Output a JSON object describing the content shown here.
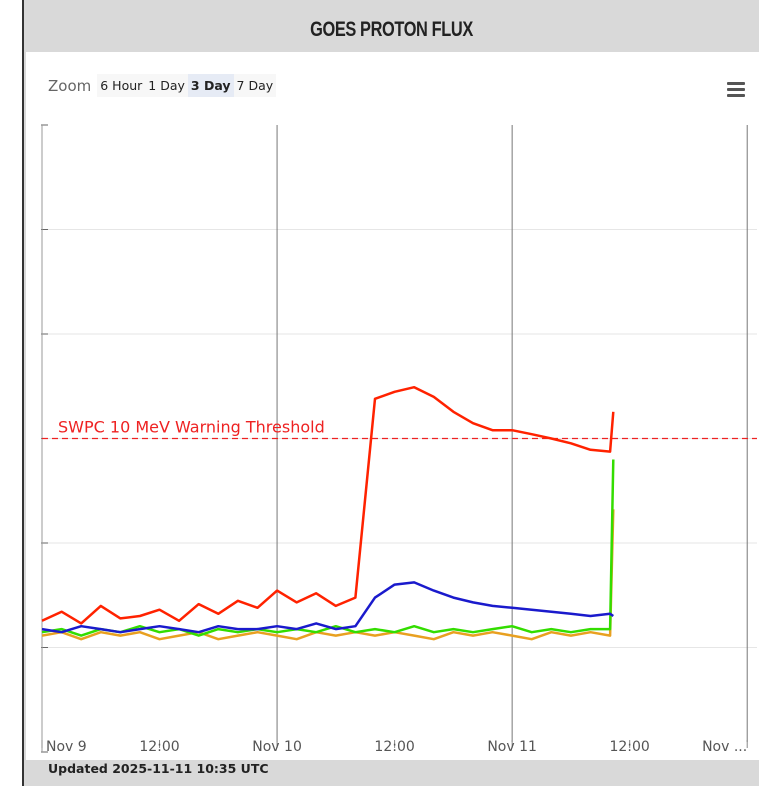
{
  "header": {
    "title": "GOES PROTON FLUX"
  },
  "zoom": {
    "label": "Zoom",
    "buttons": [
      "6 Hour",
      "1 Day",
      "3 Day",
      "7 Day"
    ],
    "selected": 2
  },
  "footer": "Updated 2025-11-11 10:35 UTC",
  "chart_data": {
    "type": "line",
    "log_scale": true,
    "grid": true,
    "x": [
      "2025-11-09T00:00",
      "2025-11-09T02:00",
      "2025-11-09T04:00",
      "2025-11-09T06:00",
      "2025-11-09T08:00",
      "2025-11-09T10:00",
      "2025-11-09T12:00",
      "2025-11-09T14:00",
      "2025-11-09T16:00",
      "2025-11-09T18:00",
      "2025-11-09T20:00",
      "2025-11-09T22:00",
      "2025-11-10T00:00",
      "2025-11-10T02:00",
      "2025-11-10T04:00",
      "2025-11-10T06:00",
      "2025-11-10T08:00",
      "2025-11-10T10:00",
      "2025-11-10T12:00",
      "2025-11-10T14:00",
      "2025-11-10T16:00",
      "2025-11-10T18:00",
      "2025-11-10T20:00",
      "2025-11-10T22:00",
      "2025-11-11T00:00",
      "2025-11-11T02:00",
      "2025-11-11T04:00",
      "2025-11-11T06:00",
      "2025-11-11T08:00",
      "2025-11-11T10:00",
      "2025-11-11T10:20"
    ],
    "series": [
      {
        "color": "#ff2200",
        "values": [
          0.18,
          0.22,
          0.17,
          0.25,
          0.19,
          0.2,
          0.23,
          0.18,
          0.26,
          0.21,
          0.28,
          0.24,
          0.35,
          0.27,
          0.33,
          0.25,
          0.3,
          24,
          28,
          31,
          25,
          18,
          14,
          12,
          12,
          11,
          10,
          9,
          7.8,
          7.5,
          18
        ]
      },
      {
        "color": "#1a1acc",
        "values": [
          0.15,
          0.14,
          0.16,
          0.15,
          0.14,
          0.15,
          0.16,
          0.15,
          0.14,
          0.16,
          0.15,
          0.15,
          0.16,
          0.15,
          0.17,
          0.15,
          0.16,
          0.3,
          0.4,
          0.42,
          0.35,
          0.3,
          0.27,
          0.25,
          0.24,
          0.23,
          0.22,
          0.21,
          0.2,
          0.21,
          0.2
        ]
      },
      {
        "color": "#33dd00",
        "values": [
          0.14,
          0.15,
          0.13,
          0.15,
          0.14,
          0.16,
          0.14,
          0.15,
          0.13,
          0.15,
          0.14,
          0.15,
          0.14,
          0.15,
          0.14,
          0.16,
          0.14,
          0.15,
          0.14,
          0.16,
          0.14,
          0.15,
          0.14,
          0.15,
          0.16,
          0.14,
          0.15,
          0.14,
          0.15,
          0.15,
          6.3
        ]
      },
      {
        "color": "#e8a020",
        "values": [
          0.13,
          0.14,
          0.12,
          0.14,
          0.13,
          0.14,
          0.12,
          0.13,
          0.14,
          0.12,
          0.13,
          0.14,
          0.13,
          0.12,
          0.14,
          0.13,
          0.14,
          0.13,
          0.14,
          0.13,
          0.12,
          0.14,
          0.13,
          0.14,
          0.13,
          0.12,
          0.14,
          0.13,
          0.14,
          0.13,
          2.1
        ]
      }
    ],
    "threshold": {
      "value": 10,
      "label": "SWPC 10 MeV Warning Threshold",
      "color": "#ee2222"
    },
    "xlim": [
      "2025-11-09T00:00",
      "2025-11-12T01:00"
    ],
    "xticks": [
      {
        "value": "2025-11-09T00:00",
        "label": "Nov 9"
      },
      {
        "value": "2025-11-09T12:00",
        "label": "12:00"
      },
      {
        "value": "2025-11-10T00:00",
        "label": "Nov 10"
      },
      {
        "value": "2025-11-10T12:00",
        "label": "12:00"
      },
      {
        "value": "2025-11-11T00:00",
        "label": "Nov 11"
      },
      {
        "value": "2025-11-11T12:00",
        "label": "12:00"
      },
      {
        "value": "2025-11-12T00:00",
        "label": "Nov ..."
      }
    ],
    "ylim": [
      0.01,
      10000
    ],
    "yticks": [
      0.01,
      0.1,
      1,
      10,
      100,
      1000,
      10000
    ]
  }
}
